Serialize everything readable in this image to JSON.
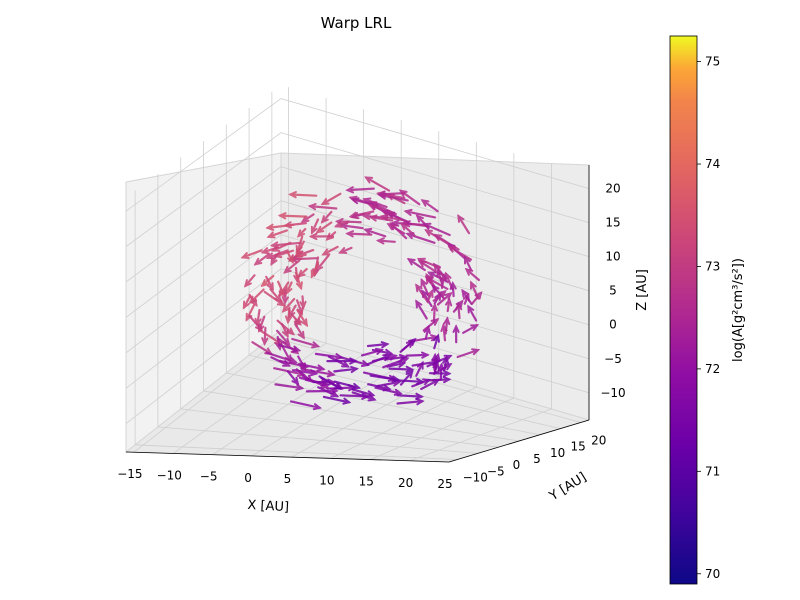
{
  "chart_data": {
    "type": "quiver3d",
    "title": "Warp LRL",
    "xlabel": "X [AU]",
    "ylabel": "Y [AU]",
    "zlabel": "Z [AU]",
    "colorbar_label": "log(A[g²cm³/s²])",
    "xlim": [
      -16,
      25
    ],
    "ylim": [
      -12,
      22
    ],
    "zlim": [
      -14,
      22
    ],
    "x_ticks": [
      -15,
      -10,
      -5,
      0,
      5,
      10,
      15,
      20,
      25
    ],
    "x_tick_labels": [
      "−15",
      "−10",
      "−5",
      "0",
      "5",
      "10",
      "15",
      "20",
      "25"
    ],
    "y_ticks": [
      -10,
      -5,
      0,
      5,
      10,
      15,
      20
    ],
    "y_tick_labels": [
      "−10",
      "−5",
      "0",
      "5",
      "10",
      "15",
      "20"
    ],
    "z_ticks": [
      -10,
      -5,
      0,
      5,
      10,
      15,
      20
    ],
    "z_tick_labels": [
      "−10",
      "−5",
      "0",
      "5",
      "10",
      "15",
      "20"
    ],
    "colorbar_range": [
      69.9,
      75.25
    ],
    "colorbar_ticks": [
      70,
      71,
      72,
      73,
      74,
      75
    ],
    "colormap": "plasma",
    "grid": true,
    "arrows": {
      "description_of_sampling": "ring of arrows in a warped annulus; center ~ (5,5,3), radius ~ 12, tilted",
      "ring_center": [
        5,
        5,
        3
      ],
      "ring_radius": 12,
      "tilt_deg": 30,
      "count": 220
    }
  }
}
